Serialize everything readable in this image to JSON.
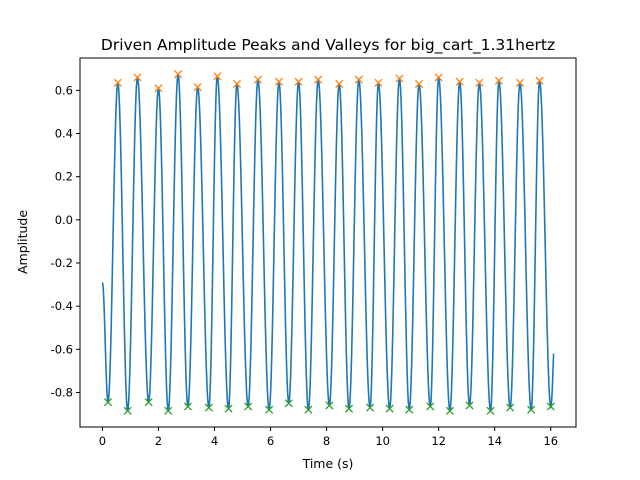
{
  "chart_data": {
    "type": "line",
    "title": "Driven Amplitude Peaks and Valleys for big_cart_1.31hertz",
    "xlabel": "Time (s)",
    "ylabel": "Amplitude",
    "xlim": [
      -0.8,
      16.9
    ],
    "ylim": [
      -0.96,
      0.75
    ],
    "xticks": [
      "0",
      "2",
      "4",
      "6",
      "8",
      "10",
      "12",
      "14",
      "16"
    ],
    "yticks": [
      "-0.8",
      "-0.6",
      "-0.4",
      "-0.2",
      "0.0",
      "0.2",
      "0.4",
      "0.6"
    ],
    "grid": false,
    "legend": "none",
    "series": [
      {
        "type": "line",
        "color": "#1f77b4",
        "description_points": {
          "x_start": 0.0,
          "x_end": 16.1,
          "y_start": -0.29,
          "y_end": -0.62
        }
      },
      {
        "type": "scatter",
        "marker": "x",
        "color": "#ff7f0e",
        "x": [
          0.55,
          1.25,
          2.0,
          2.7,
          3.4,
          4.1,
          4.8,
          5.55,
          6.3,
          7.0,
          7.7,
          8.45,
          9.15,
          9.85,
          10.6,
          11.3,
          12.0,
          12.75,
          13.45,
          14.15,
          14.9,
          15.6
        ],
        "y": [
          0.635,
          0.66,
          0.61,
          0.675,
          0.615,
          0.665,
          0.63,
          0.65,
          0.64,
          0.64,
          0.65,
          0.63,
          0.65,
          0.635,
          0.655,
          0.63,
          0.66,
          0.64,
          0.635,
          0.645,
          0.635,
          0.645
        ]
      },
      {
        "type": "scatter",
        "marker": "x",
        "color": "#2ca02c",
        "x": [
          0.2,
          0.9,
          1.65,
          2.35,
          3.05,
          3.8,
          4.5,
          5.2,
          5.95,
          6.65,
          7.35,
          8.1,
          8.8,
          9.55,
          10.25,
          10.95,
          11.7,
          12.4,
          13.1,
          13.85,
          14.55,
          15.3,
          16.0
        ],
        "y": [
          -0.845,
          -0.885,
          -0.845,
          -0.885,
          -0.865,
          -0.87,
          -0.875,
          -0.865,
          -0.88,
          -0.85,
          -0.88,
          -0.86,
          -0.875,
          -0.87,
          -0.875,
          -0.88,
          -0.865,
          -0.885,
          -0.86,
          -0.885,
          -0.87,
          -0.88,
          -0.865
        ]
      }
    ]
  }
}
